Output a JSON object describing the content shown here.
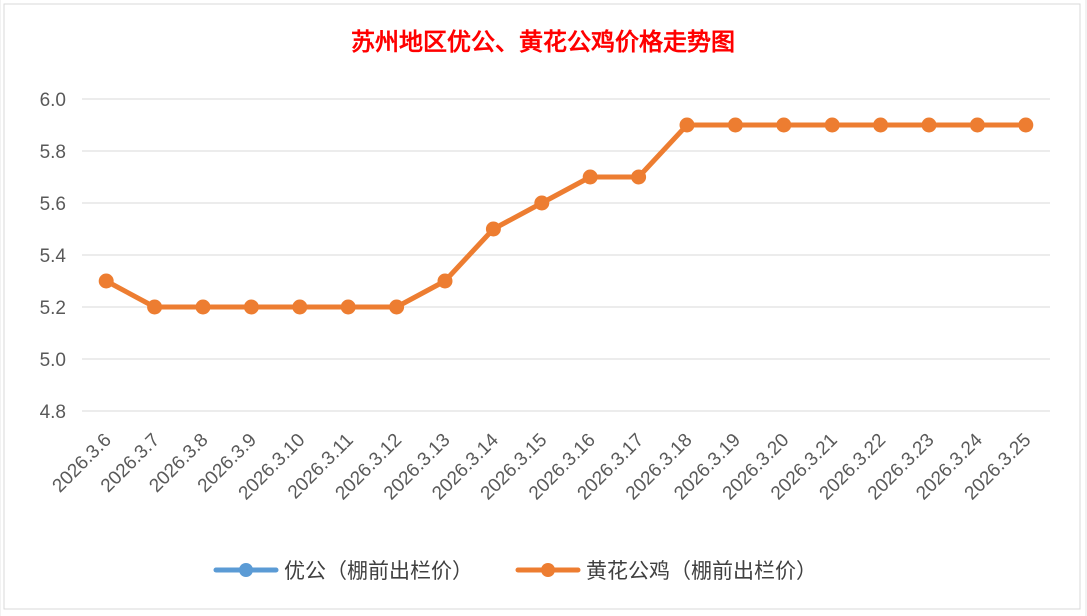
{
  "chart_data": {
    "type": "line",
    "title": "苏州地区优公、黄花公鸡价格走势图",
    "categories": [
      "2026.3.6",
      "2026.3.7",
      "2026.3.8",
      "2026.3.9",
      "2026.3.10",
      "2026.3.11",
      "2026.3.12",
      "2026.3.13",
      "2026.3.14",
      "2026.3.15",
      "2026.3.16",
      "2026.3.17",
      "2026.3.18",
      "2026.3.19",
      "2026.3.20",
      "2026.3.21",
      "2026.3.22",
      "2026.3.23",
      "2026.3.24",
      "2026.3.25"
    ],
    "series": [
      {
        "name": "优公（棚前出栏价）",
        "color": "#5b9bd5",
        "values": [
          null,
          null,
          null,
          null,
          null,
          null,
          null,
          null,
          null,
          null,
          null,
          null,
          null,
          null,
          null,
          null,
          null,
          null,
          null,
          null
        ]
      },
      {
        "name": "黄花公鸡（棚前出栏价）",
        "color": "#ed7d31",
        "values": [
          5.3,
          5.2,
          5.2,
          5.2,
          5.2,
          5.2,
          5.2,
          5.3,
          5.5,
          5.6,
          5.7,
          5.7,
          5.9,
          5.9,
          5.9,
          5.9,
          5.9,
          5.9,
          5.9,
          5.9
        ]
      }
    ],
    "ylim": [
      4.8,
      6.0
    ],
    "yticks": [
      "4.8",
      "5.0",
      "5.2",
      "5.4",
      "5.6",
      "5.8",
      "6.0"
    ],
    "grid": true,
    "legend_position": "bottom"
  }
}
